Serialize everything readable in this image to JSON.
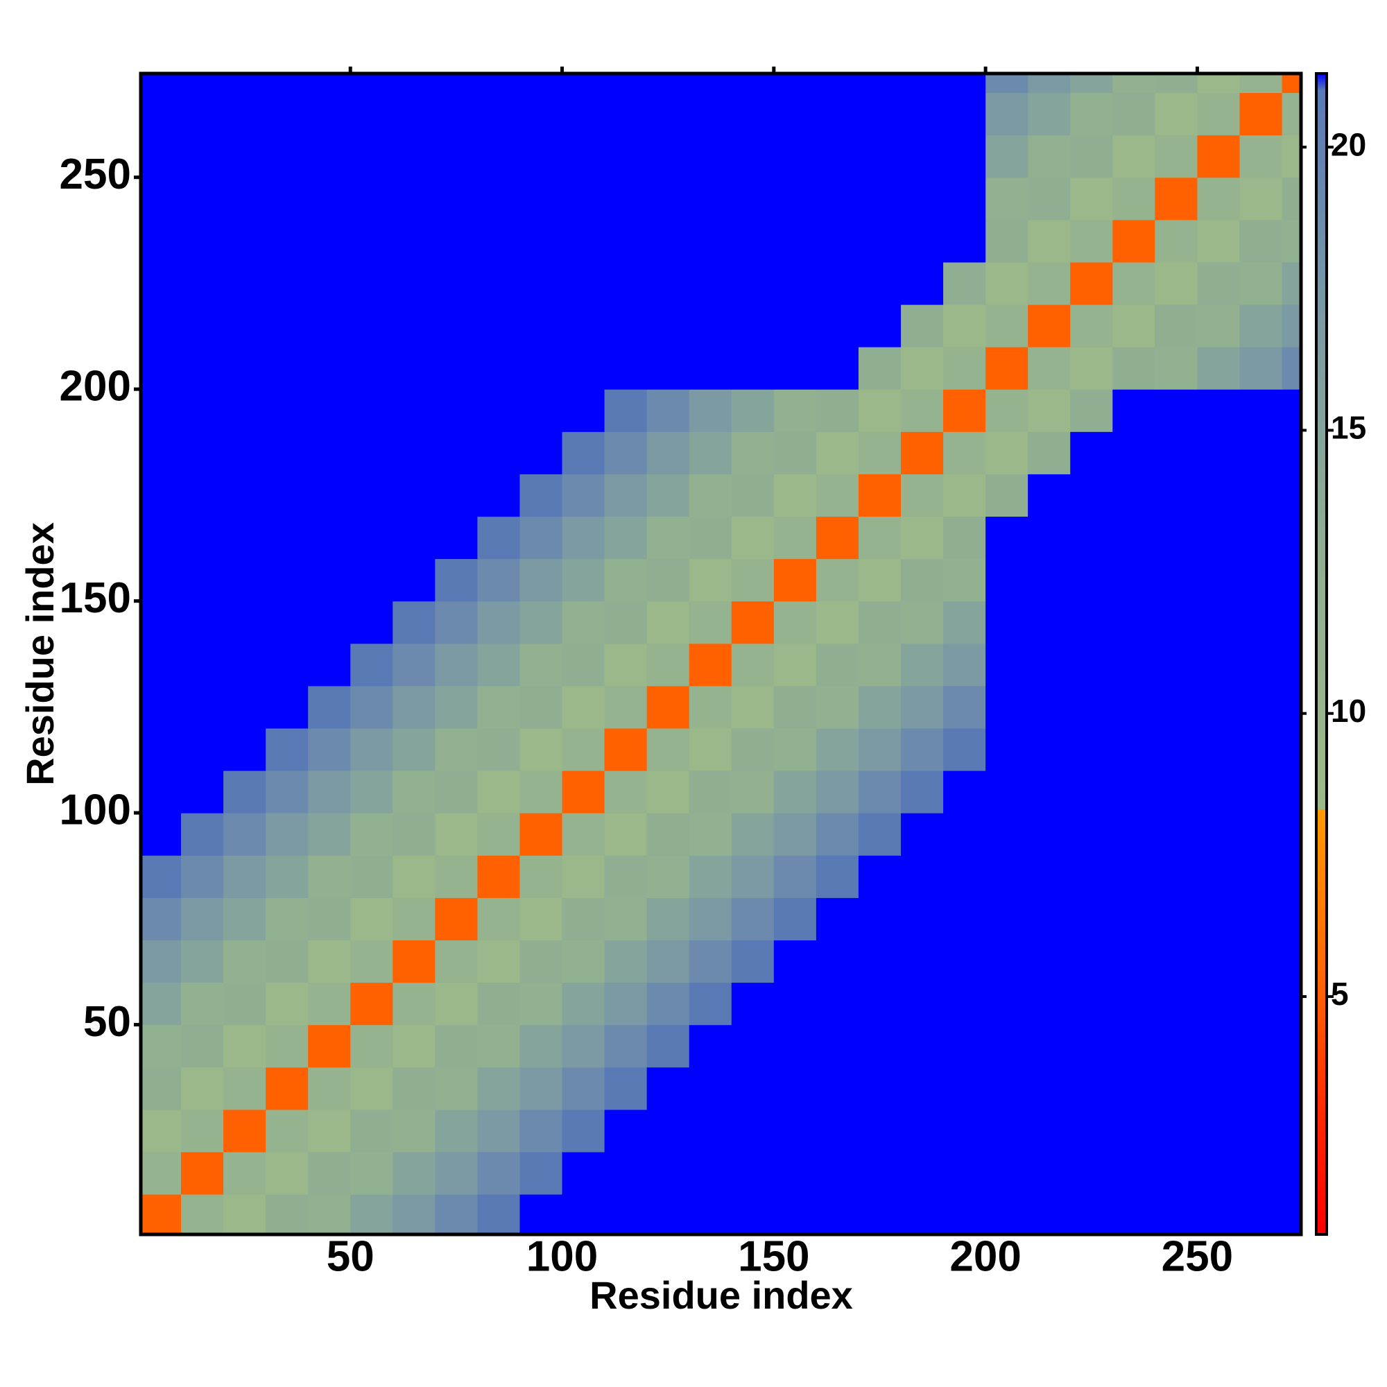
{
  "chart_data": {
    "type": "heatmap",
    "x_label": "Residue index",
    "y_label": "Residue index",
    "x": [
      5,
      15,
      25,
      35,
      45,
      55,
      65,
      75,
      85,
      95,
      105,
      115,
      125,
      135,
      145,
      155,
      165,
      175,
      185,
      195,
      205,
      215,
      225,
      235,
      245,
      255,
      265,
      275
    ],
    "y": [
      5,
      15,
      25,
      35,
      45,
      55,
      65,
      75,
      85,
      95,
      105,
      115,
      125,
      135,
      145,
      155,
      165,
      175,
      185,
      195,
      205,
      215,
      225,
      235,
      245,
      255,
      265,
      275
    ],
    "z": [
      [
        5,
        11,
        9,
        13,
        12,
        15,
        17,
        19,
        21,
        22,
        22,
        22,
        22,
        22,
        22,
        22,
        22,
        22,
        22,
        22,
        22,
        22,
        22,
        22,
        22,
        22,
        22,
        22
      ],
      [
        11,
        5,
        11,
        9,
        13,
        12,
        15,
        17,
        19,
        21,
        22,
        22,
        22,
        22,
        22,
        22,
        22,
        22,
        22,
        22,
        22,
        22,
        22,
        22,
        22,
        22,
        22,
        22
      ],
      [
        9,
        11,
        5,
        11,
        9,
        13,
        12,
        15,
        17,
        19,
        21,
        22,
        22,
        22,
        22,
        22,
        22,
        22,
        22,
        22,
        22,
        22,
        22,
        22,
        22,
        22,
        22,
        22
      ],
      [
        13,
        9,
        11,
        5,
        11,
        9,
        13,
        12,
        15,
        17,
        19,
        21,
        22,
        22,
        22,
        22,
        22,
        22,
        22,
        22,
        22,
        22,
        22,
        22,
        22,
        22,
        22,
        22
      ],
      [
        12,
        13,
        9,
        11,
        5,
        11,
        9,
        13,
        12,
        15,
        17,
        19,
        21,
        22,
        22,
        22,
        22,
        22,
        22,
        22,
        22,
        22,
        22,
        22,
        22,
        22,
        22,
        22
      ],
      [
        15,
        12,
        13,
        9,
        11,
        5,
        11,
        9,
        13,
        12,
        15,
        17,
        19,
        21,
        22,
        22,
        22,
        22,
        22,
        22,
        22,
        22,
        22,
        22,
        22,
        22,
        22,
        22
      ],
      [
        17,
        15,
        12,
        13,
        9,
        11,
        5,
        11,
        9,
        13,
        12,
        15,
        17,
        19,
        21,
        22,
        22,
        22,
        22,
        22,
        22,
        22,
        22,
        22,
        22,
        22,
        22,
        22
      ],
      [
        19,
        17,
        15,
        12,
        13,
        9,
        11,
        5,
        11,
        9,
        13,
        12,
        15,
        17,
        19,
        21,
        22,
        22,
        22,
        22,
        22,
        22,
        22,
        22,
        22,
        22,
        22,
        22
      ],
      [
        21,
        19,
        17,
        15,
        12,
        13,
        9,
        11,
        5,
        11,
        9,
        13,
        12,
        15,
        17,
        19,
        21,
        22,
        22,
        22,
        22,
        22,
        22,
        22,
        22,
        22,
        22,
        22
      ],
      [
        22,
        21,
        19,
        17,
        15,
        12,
        13,
        9,
        11,
        5,
        11,
        9,
        13,
        12,
        15,
        17,
        19,
        21,
        22,
        22,
        22,
        22,
        22,
        22,
        22,
        22,
        22,
        22
      ],
      [
        22,
        22,
        21,
        19,
        17,
        15,
        12,
        13,
        9,
        11,
        5,
        11,
        9,
        13,
        12,
        15,
        17,
        19,
        21,
        22,
        22,
        22,
        22,
        22,
        22,
        22,
        22,
        22
      ],
      [
        22,
        22,
        22,
        21,
        19,
        17,
        15,
        12,
        13,
        9,
        11,
        5,
        11,
        9,
        13,
        12,
        15,
        17,
        19,
        21,
        22,
        22,
        22,
        22,
        22,
        22,
        22,
        22
      ],
      [
        22,
        22,
        22,
        22,
        21,
        19,
        17,
        15,
        12,
        13,
        9,
        11,
        5,
        11,
        9,
        13,
        12,
        15,
        17,
        19,
        22,
        22,
        22,
        22,
        22,
        22,
        22,
        22
      ],
      [
        22,
        22,
        22,
        22,
        22,
        21,
        19,
        17,
        15,
        12,
        13,
        9,
        11,
        5,
        11,
        9,
        13,
        12,
        15,
        17,
        22,
        22,
        22,
        22,
        22,
        22,
        22,
        22
      ],
      [
        22,
        22,
        22,
        22,
        22,
        22,
        21,
        19,
        17,
        15,
        12,
        13,
        9,
        11,
        5,
        11,
        9,
        13,
        12,
        15,
        22,
        22,
        22,
        22,
        22,
        22,
        22,
        22
      ],
      [
        22,
        22,
        22,
        22,
        22,
        22,
        22,
        21,
        19,
        17,
        15,
        12,
        13,
        9,
        11,
        5,
        11,
        9,
        13,
        12,
        22,
        22,
        22,
        22,
        22,
        22,
        22,
        22
      ],
      [
        22,
        22,
        22,
        22,
        22,
        22,
        22,
        22,
        21,
        19,
        17,
        15,
        12,
        13,
        9,
        11,
        5,
        11,
        9,
        13,
        22,
        22,
        22,
        22,
        22,
        22,
        22,
        22
      ],
      [
        22,
        22,
        22,
        22,
        22,
        22,
        22,
        22,
        22,
        21,
        19,
        17,
        15,
        12,
        13,
        9,
        11,
        5,
        11,
        9,
        13,
        22,
        22,
        22,
        22,
        22,
        22,
        22
      ],
      [
        22,
        22,
        22,
        22,
        22,
        22,
        22,
        22,
        22,
        22,
        21,
        19,
        17,
        15,
        12,
        13,
        9,
        11,
        5,
        11,
        9,
        13,
        22,
        22,
        22,
        22,
        22,
        22
      ],
      [
        22,
        22,
        22,
        22,
        22,
        22,
        22,
        22,
        22,
        22,
        22,
        21,
        19,
        17,
        15,
        12,
        13,
        9,
        11,
        5,
        11,
        9,
        13,
        22,
        22,
        22,
        22,
        22
      ],
      [
        22,
        22,
        22,
        22,
        22,
        22,
        22,
        22,
        22,
        22,
        22,
        22,
        22,
        22,
        22,
        22,
        22,
        13,
        9,
        11,
        5,
        11,
        9,
        13,
        12,
        15,
        17,
        19
      ],
      [
        22,
        22,
        22,
        22,
        22,
        22,
        22,
        22,
        22,
        22,
        22,
        22,
        22,
        22,
        22,
        22,
        22,
        22,
        13,
        9,
        11,
        5,
        11,
        9,
        13,
        12,
        15,
        17
      ],
      [
        22,
        22,
        22,
        22,
        22,
        22,
        22,
        22,
        22,
        22,
        22,
        22,
        22,
        22,
        22,
        22,
        22,
        22,
        22,
        13,
        9,
        11,
        5,
        11,
        9,
        13,
        12,
        15
      ],
      [
        22,
        22,
        22,
        22,
        22,
        22,
        22,
        22,
        22,
        22,
        22,
        22,
        22,
        22,
        22,
        22,
        22,
        22,
        22,
        22,
        13,
        9,
        11,
        5,
        11,
        9,
        13,
        12
      ],
      [
        22,
        22,
        22,
        22,
        22,
        22,
        22,
        22,
        22,
        22,
        22,
        22,
        22,
        22,
        22,
        22,
        22,
        22,
        22,
        22,
        12,
        13,
        9,
        11,
        5,
        11,
        9,
        13
      ],
      [
        22,
        22,
        22,
        22,
        22,
        22,
        22,
        22,
        22,
        22,
        22,
        22,
        22,
        22,
        22,
        22,
        22,
        22,
        22,
        22,
        15,
        12,
        13,
        9,
        11,
        5,
        11,
        9
      ],
      [
        22,
        22,
        22,
        22,
        22,
        22,
        22,
        22,
        22,
        22,
        22,
        22,
        22,
        22,
        22,
        22,
        22,
        22,
        22,
        22,
        17,
        15,
        12,
        13,
        9,
        11,
        5,
        11
      ],
      [
        22,
        22,
        22,
        22,
        22,
        22,
        22,
        22,
        22,
        22,
        22,
        22,
        22,
        22,
        22,
        22,
        22,
        22,
        22,
        22,
        19,
        17,
        15,
        12,
        13,
        9,
        11,
        5
      ]
    ],
    "xlim": [
      0.5,
      274.5
    ],
    "ylim": [
      0.5,
      274.5
    ],
    "xticks": [
      50,
      100,
      150,
      200,
      250
    ],
    "yticks": [
      50,
      100,
      150,
      200,
      250
    ],
    "clim": [
      0.8,
      21.3
    ],
    "cticks": [
      5,
      10,
      15,
      20
    ],
    "colorscale": [
      {
        "value": 0.8,
        "color": "#ff0000"
      },
      {
        "value": 3,
        "color": "#ff2a00"
      },
      {
        "value": 5,
        "color": "#ff6000"
      },
      {
        "value": 8.3,
        "color": "#ff9a00"
      },
      {
        "value": 8.31,
        "color": "#9cba88"
      },
      {
        "value": 13,
        "color": "#8fae92"
      },
      {
        "value": 17,
        "color": "#7b9aa4"
      },
      {
        "value": 21,
        "color": "#5a7ab6"
      },
      {
        "value": 21.3,
        "color": "#0000ff"
      }
    ]
  }
}
